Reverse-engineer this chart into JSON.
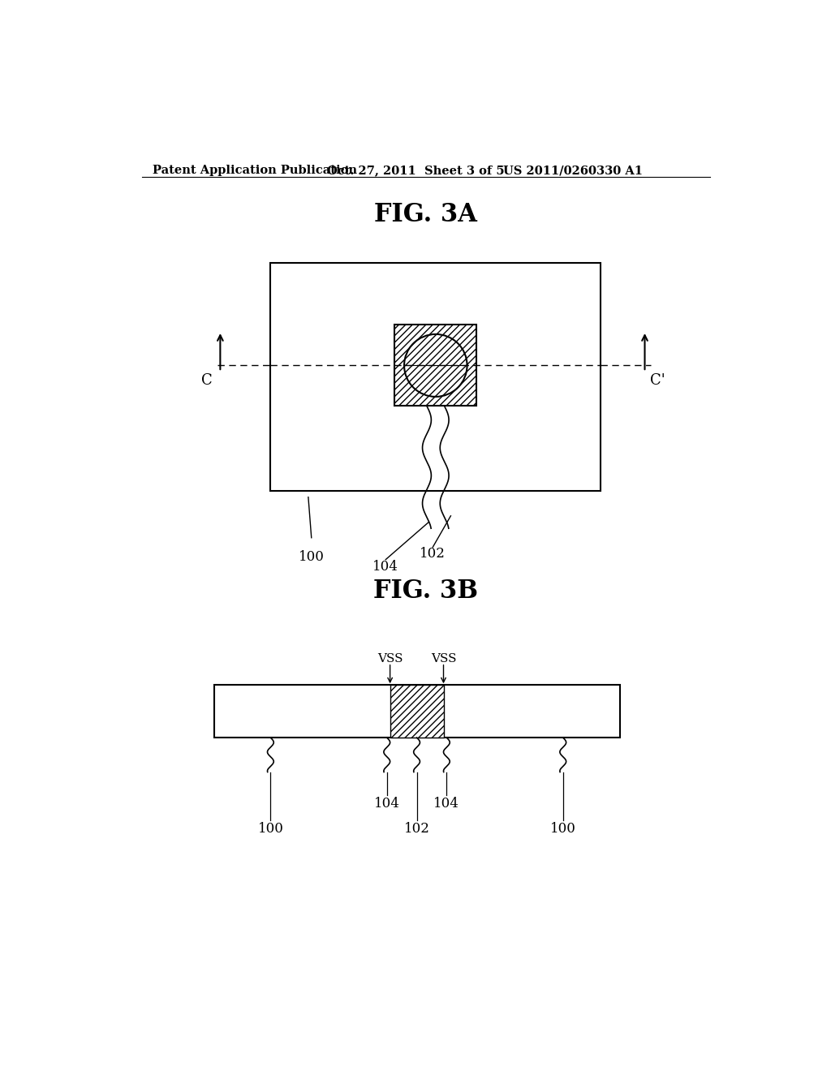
{
  "bg_color": "#ffffff",
  "header_left": "Patent Application Publication",
  "header_mid": "Oct. 27, 2011  Sheet 3 of 5",
  "header_right": "US 2011/0260330 A1",
  "fig3a_title": "FIG. 3A",
  "fig3b_title": "FIG. 3B",
  "label_c": "C",
  "label_cprime": "C'",
  "label_100_3a": "100",
  "label_102_3a": "102",
  "label_104_3a": "104",
  "label_vss1": "VSS",
  "label_vss2": "VSS",
  "label_100_3b_left": "100",
  "label_104_3b_left": "104",
  "label_102_3b": "102",
  "label_104_3b_right": "104",
  "label_100_3b_right": "100"
}
